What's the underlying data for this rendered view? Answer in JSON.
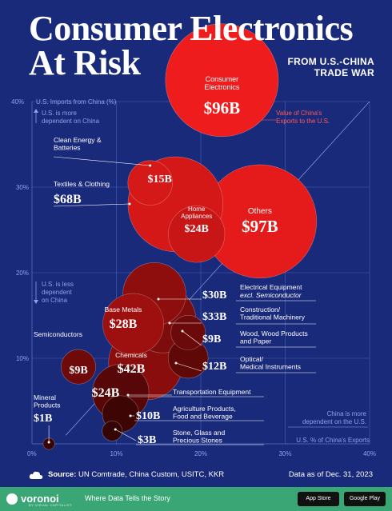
{
  "header": {
    "title_line1": "Consumer Electronics",
    "title_line2": "At Risk",
    "subtitle_line1": "FROM U.S.-CHINA",
    "subtitle_line2": "TRADE WAR"
  },
  "chart_data": {
    "type": "scatter",
    "title": "Consumer Electronics At Risk",
    "subtitle": "FROM U.S.-CHINA TRADE WAR",
    "xlabel": "U.S. % of China's Exports",
    "ylabel": "U.S. Imports from China (%)",
    "xlim": [
      0,
      40
    ],
    "ylim": [
      0,
      40
    ],
    "x_ticks": [
      "0%",
      "10%",
      "20%",
      "30%",
      "40%"
    ],
    "y_ticks": [
      "10%",
      "20%",
      "30%"
    ],
    "y_top_tick": "40%",
    "size_legend": "Value of China's Exports to the U.S.",
    "quadrant_labels": {
      "top": "U.S. is more dependent on China",
      "middle": "U.S. is less dependent on China",
      "bottom_right": "China is more dependent on the U.S."
    },
    "points": [
      {
        "name": "Consumer Electronics",
        "value_label": "$96B",
        "value": 96,
        "x": 22.5,
        "y": 42.5,
        "color": "#ee1c1c"
      },
      {
        "name": "Others",
        "value_label": "$97B",
        "value": 97,
        "x": 27,
        "y": 26,
        "color": "#e51a1a"
      },
      {
        "name": "Textiles & Clothing",
        "value_label": "$68B",
        "value": 68,
        "x": 17,
        "y": 28,
        "color": "#d41717"
      },
      {
        "name": "Home Appliances",
        "value_label": "$24B",
        "value": 24,
        "x": 19.5,
        "y": 24.5,
        "color": "#c81515"
      },
      {
        "name": "Clean Energy & Batteries",
        "value_label": "$15B",
        "value": 15,
        "x": 14,
        "y": 30.5,
        "color": "#d51818"
      },
      {
        "name": "Electrical Equipment excl. Semiconductor",
        "value_label": "$30B",
        "value": 30,
        "x": 14.5,
        "y": 17.5,
        "color": "#8e0e0e"
      },
      {
        "name": "Construction/ Traditional Machinery",
        "value_label": "$33B",
        "value": 33,
        "x": 15.5,
        "y": 14.5,
        "color": "#7d0c0c"
      },
      {
        "name": "Base Metals",
        "value_label": "$28B",
        "value": 28,
        "x": 12,
        "y": 14,
        "color": "#9e1010"
      },
      {
        "name": "Wood, Wood Products and Paper",
        "value_label": "$9B",
        "value": 9,
        "x": 18.5,
        "y": 13,
        "color": "#6a0a0a"
      },
      {
        "name": "Chemicals",
        "value_label": "$42B",
        "value": 42,
        "x": 13.5,
        "y": 9.5,
        "color": "#8a0d0d"
      },
      {
        "name": "Optical/ Medical Instruments",
        "value_label": "$12B",
        "value": 12,
        "x": 18.5,
        "y": 10,
        "color": "#5e0808"
      },
      {
        "name": "Semiconductors",
        "value_label": "$9B",
        "value": 9,
        "x": 5.5,
        "y": 9,
        "color": "#6e0a0a"
      },
      {
        "name": "Transportation Equipment",
        "value_label": "$24B",
        "value": 24,
        "x": 10.5,
        "y": 6,
        "color": "#570707"
      },
      {
        "name": "Agriculture Products, Food and Beverage",
        "value_label": "$10B",
        "value": 10,
        "x": 10.5,
        "y": 3.5,
        "color": "#3e0505"
      },
      {
        "name": "Stone, Glass and Precious Stones",
        "value_label": "$3B",
        "value": 3,
        "x": 9.5,
        "y": 1.5,
        "color": "#350404"
      },
      {
        "name": "Mineral Products",
        "value_label": "$1B",
        "value": 1,
        "x": 2,
        "y": 0,
        "color": "#3a0404"
      }
    ]
  },
  "footer": {
    "source_label": "Source:",
    "source_text": "UN Comtrade, China Custom, USITC, KKR",
    "as_of": "Data as of Dec. 31, 2023",
    "brand": "voronoi",
    "brand_sub": "BY VISUAL CAPITALIST",
    "tagline": "Where Data Tells the Story",
    "app_store": "App Store",
    "google_play": "Google Play",
    "colors": {
      "background": "#1a2a7a",
      "green": "#3aa676",
      "grid": "#4b5eb6"
    }
  }
}
